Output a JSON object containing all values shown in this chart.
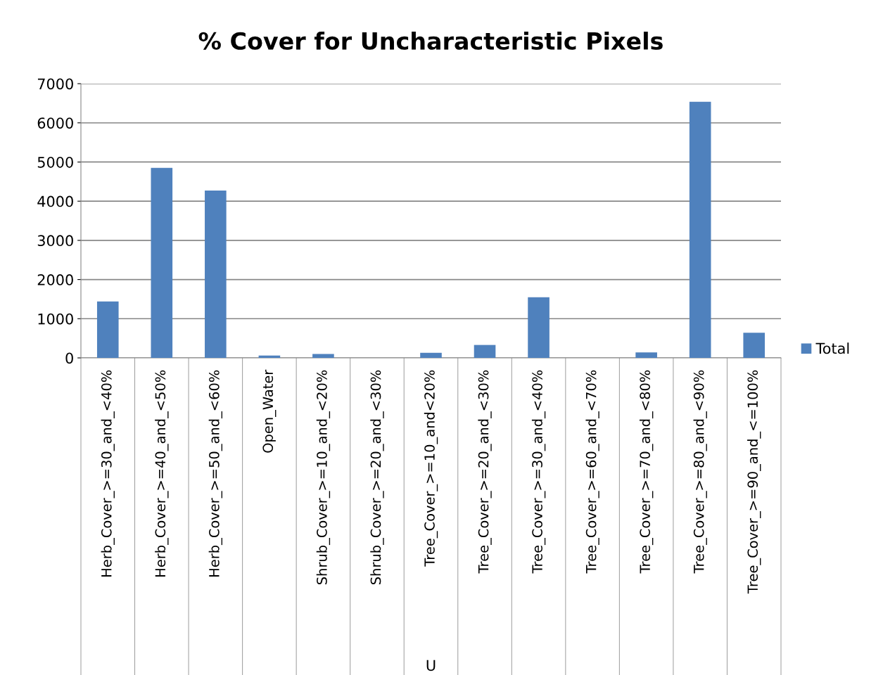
{
  "chart_data": {
    "type": "bar",
    "title": "% Cover for Uncharacteristic Pixels",
    "xlabel": "U",
    "categories": [
      "Herb_Cover_>=30_and_<40%",
      "Herb_Cover_>=40_and_<50%",
      "Herb_Cover_>=50_and_<60%",
      "Open_Water",
      "Shrub_Cover_>=10_and_<20%",
      "Shrub_Cover_>=20_and_<30%",
      "Tree_Cover_>=10_and<20%",
      "Tree_Cover_>=20_and_<30%",
      "Tree_Cover_>=30_and_<40%",
      "Tree_Cover_>=60_and_<70%",
      "Tree_Cover_>=70_and_<80%",
      "Tree_Cover_>=80_and_<90%",
      "Tree_Cover_>=90_and_<=100%"
    ],
    "series": [
      {
        "name": "Total",
        "color": "#4f81bd",
        "values": [
          1440,
          4850,
          4270,
          60,
          100,
          0,
          130,
          330,
          1550,
          0,
          140,
          6540,
          640
        ]
      }
    ],
    "ylim": [
      0,
      7000
    ],
    "yticks": [
      0,
      1000,
      2000,
      3000,
      4000,
      5000,
      6000,
      7000
    ],
    "grid": "y",
    "legend": "right"
  }
}
